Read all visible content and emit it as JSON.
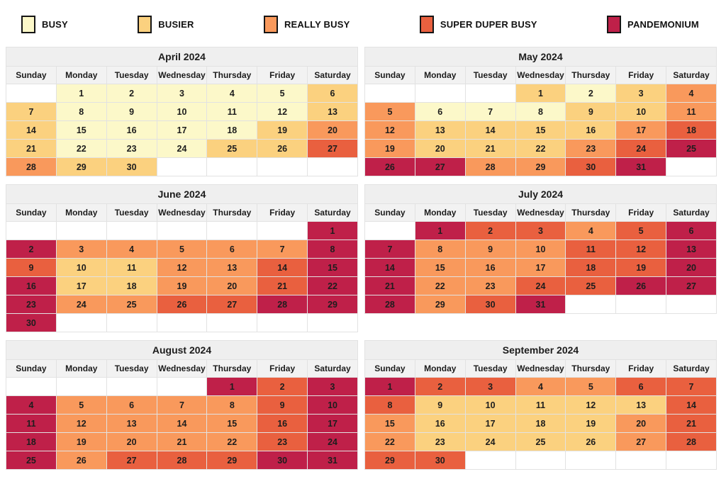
{
  "chart_data": {
    "type": "heatmap",
    "subtype": "calendar-crowd-levels",
    "legend_position": "top",
    "grid": "on",
    "levels": {
      "busy": {
        "label": "BUSY",
        "color": "#FCF8C9"
      },
      "busier": {
        "label": "BUSIER",
        "color": "#FBD17F"
      },
      "really_busy": {
        "label": "REALLY BUSY",
        "color": "#F9995C"
      },
      "super_duper_busy": {
        "label": "SUPER DUPER BUSY",
        "color": "#E9603F"
      },
      "pandemonium": {
        "label": "PANDEMONIUM",
        "color": "#BF2049"
      }
    },
    "legend_order": [
      "busy",
      "busier",
      "really_busy",
      "super_duper_busy",
      "pandemonium"
    ],
    "day_headers": [
      "Sunday",
      "Monday",
      "Tuesday",
      "Wednesday",
      "Thursday",
      "Friday",
      "Saturday"
    ],
    "months": [
      {
        "title": "April 2024",
        "weeks": [
          [
            null,
            [
              1,
              "busy"
            ],
            [
              2,
              "busy"
            ],
            [
              3,
              "busy"
            ],
            [
              4,
              "busy"
            ],
            [
              5,
              "busy"
            ],
            [
              6,
              "busier"
            ]
          ],
          [
            [
              7,
              "busier"
            ],
            [
              8,
              "busy"
            ],
            [
              9,
              "busy"
            ],
            [
              10,
              "busy"
            ],
            [
              11,
              "busy"
            ],
            [
              12,
              "busy"
            ],
            [
              13,
              "busier"
            ]
          ],
          [
            [
              14,
              "busier"
            ],
            [
              15,
              "busy"
            ],
            [
              16,
              "busy"
            ],
            [
              17,
              "busy"
            ],
            [
              18,
              "busy"
            ],
            [
              19,
              "busier"
            ],
            [
              20,
              "really_busy"
            ]
          ],
          [
            [
              21,
              "busier"
            ],
            [
              22,
              "busy"
            ],
            [
              23,
              "busy"
            ],
            [
              24,
              "busy"
            ],
            [
              25,
              "busier"
            ],
            [
              26,
              "busier"
            ],
            [
              27,
              "super_duper_busy"
            ]
          ],
          [
            [
              28,
              "really_busy"
            ],
            [
              29,
              "busier"
            ],
            [
              30,
              "busier"
            ],
            null,
            null,
            null,
            null
          ]
        ]
      },
      {
        "title": "May 2024",
        "weeks": [
          [
            null,
            null,
            null,
            [
              1,
              "busier"
            ],
            [
              2,
              "busy"
            ],
            [
              3,
              "busier"
            ],
            [
              4,
              "really_busy"
            ]
          ],
          [
            [
              5,
              "really_busy"
            ],
            [
              6,
              "busy"
            ],
            [
              7,
              "busy"
            ],
            [
              8,
              "busy"
            ],
            [
              9,
              "busier"
            ],
            [
              10,
              "busier"
            ],
            [
              11,
              "really_busy"
            ]
          ],
          [
            [
              12,
              "really_busy"
            ],
            [
              13,
              "busier"
            ],
            [
              14,
              "busier"
            ],
            [
              15,
              "busier"
            ],
            [
              16,
              "busier"
            ],
            [
              17,
              "really_busy"
            ],
            [
              18,
              "super_duper_busy"
            ]
          ],
          [
            [
              19,
              "really_busy"
            ],
            [
              20,
              "busier"
            ],
            [
              21,
              "busier"
            ],
            [
              22,
              "busier"
            ],
            [
              23,
              "really_busy"
            ],
            [
              24,
              "super_duper_busy"
            ],
            [
              25,
              "pandemonium"
            ]
          ],
          [
            [
              26,
              "pandemonium"
            ],
            [
              27,
              "pandemonium"
            ],
            [
              28,
              "really_busy"
            ],
            [
              29,
              "really_busy"
            ],
            [
              30,
              "super_duper_busy"
            ],
            [
              31,
              "pandemonium"
            ],
            null
          ]
        ]
      },
      {
        "title": "June 2024",
        "weeks": [
          [
            null,
            null,
            null,
            null,
            null,
            null,
            [
              1,
              "pandemonium"
            ]
          ],
          [
            [
              2,
              "pandemonium"
            ],
            [
              3,
              "really_busy"
            ],
            [
              4,
              "really_busy"
            ],
            [
              5,
              "really_busy"
            ],
            [
              6,
              "really_busy"
            ],
            [
              7,
              "really_busy"
            ],
            [
              8,
              "pandemonium"
            ]
          ],
          [
            [
              9,
              "super_duper_busy"
            ],
            [
              10,
              "busier"
            ],
            [
              11,
              "busier"
            ],
            [
              12,
              "really_busy"
            ],
            [
              13,
              "really_busy"
            ],
            [
              14,
              "super_duper_busy"
            ],
            [
              15,
              "pandemonium"
            ]
          ],
          [
            [
              16,
              "pandemonium"
            ],
            [
              17,
              "busier"
            ],
            [
              18,
              "busier"
            ],
            [
              19,
              "really_busy"
            ],
            [
              20,
              "really_busy"
            ],
            [
              21,
              "super_duper_busy"
            ],
            [
              22,
              "pandemonium"
            ]
          ],
          [
            [
              23,
              "pandemonium"
            ],
            [
              24,
              "really_busy"
            ],
            [
              25,
              "really_busy"
            ],
            [
              26,
              "super_duper_busy"
            ],
            [
              27,
              "super_duper_busy"
            ],
            [
              28,
              "pandemonium"
            ],
            [
              29,
              "pandemonium"
            ]
          ],
          [
            [
              30,
              "pandemonium"
            ],
            null,
            null,
            null,
            null,
            null,
            null
          ]
        ]
      },
      {
        "title": "July 2024",
        "weeks": [
          [
            null,
            [
              1,
              "pandemonium"
            ],
            [
              2,
              "super_duper_busy"
            ],
            [
              3,
              "super_duper_busy"
            ],
            [
              4,
              "really_busy"
            ],
            [
              5,
              "super_duper_busy"
            ],
            [
              6,
              "pandemonium"
            ]
          ],
          [
            [
              7,
              "pandemonium"
            ],
            [
              8,
              "really_busy"
            ],
            [
              9,
              "really_busy"
            ],
            [
              10,
              "really_busy"
            ],
            [
              11,
              "super_duper_busy"
            ],
            [
              12,
              "super_duper_busy"
            ],
            [
              13,
              "pandemonium"
            ]
          ],
          [
            [
              14,
              "pandemonium"
            ],
            [
              15,
              "really_busy"
            ],
            [
              16,
              "really_busy"
            ],
            [
              17,
              "really_busy"
            ],
            [
              18,
              "super_duper_busy"
            ],
            [
              19,
              "super_duper_busy"
            ],
            [
              20,
              "pandemonium"
            ]
          ],
          [
            [
              21,
              "pandemonium"
            ],
            [
              22,
              "really_busy"
            ],
            [
              23,
              "really_busy"
            ],
            [
              24,
              "super_duper_busy"
            ],
            [
              25,
              "super_duper_busy"
            ],
            [
              26,
              "pandemonium"
            ],
            [
              27,
              "pandemonium"
            ]
          ],
          [
            [
              28,
              "pandemonium"
            ],
            [
              29,
              "really_busy"
            ],
            [
              30,
              "super_duper_busy"
            ],
            [
              31,
              "pandemonium"
            ],
            null,
            null,
            null
          ]
        ]
      },
      {
        "title": "August 2024",
        "weeks": [
          [
            null,
            null,
            null,
            null,
            [
              1,
              "pandemonium"
            ],
            [
              2,
              "super_duper_busy"
            ],
            [
              3,
              "pandemonium"
            ]
          ],
          [
            [
              4,
              "pandemonium"
            ],
            [
              5,
              "really_busy"
            ],
            [
              6,
              "really_busy"
            ],
            [
              7,
              "really_busy"
            ],
            [
              8,
              "really_busy"
            ],
            [
              9,
              "super_duper_busy"
            ],
            [
              10,
              "pandemonium"
            ]
          ],
          [
            [
              11,
              "pandemonium"
            ],
            [
              12,
              "really_busy"
            ],
            [
              13,
              "really_busy"
            ],
            [
              14,
              "really_busy"
            ],
            [
              15,
              "really_busy"
            ],
            [
              16,
              "super_duper_busy"
            ],
            [
              17,
              "pandemonium"
            ]
          ],
          [
            [
              18,
              "pandemonium"
            ],
            [
              19,
              "really_busy"
            ],
            [
              20,
              "really_busy"
            ],
            [
              21,
              "really_busy"
            ],
            [
              22,
              "really_busy"
            ],
            [
              23,
              "super_duper_busy"
            ],
            [
              24,
              "pandemonium"
            ]
          ],
          [
            [
              25,
              "pandemonium"
            ],
            [
              26,
              "really_busy"
            ],
            [
              27,
              "super_duper_busy"
            ],
            [
              28,
              "super_duper_busy"
            ],
            [
              29,
              "super_duper_busy"
            ],
            [
              30,
              "pandemonium"
            ],
            [
              31,
              "pandemonium"
            ]
          ]
        ]
      },
      {
        "title": "September 2024",
        "weeks": [
          [
            [
              1,
              "pandemonium"
            ],
            [
              2,
              "super_duper_busy"
            ],
            [
              3,
              "super_duper_busy"
            ],
            [
              4,
              "really_busy"
            ],
            [
              5,
              "really_busy"
            ],
            [
              6,
              "super_duper_busy"
            ],
            [
              7,
              "super_duper_busy"
            ]
          ],
          [
            [
              8,
              "super_duper_busy"
            ],
            [
              9,
              "busier"
            ],
            [
              10,
              "busier"
            ],
            [
              11,
              "busier"
            ],
            [
              12,
              "busier"
            ],
            [
              13,
              "busier"
            ],
            [
              14,
              "super_duper_busy"
            ]
          ],
          [
            [
              15,
              "really_busy"
            ],
            [
              16,
              "busier"
            ],
            [
              17,
              "busier"
            ],
            [
              18,
              "busier"
            ],
            [
              19,
              "busier"
            ],
            [
              20,
              "really_busy"
            ],
            [
              21,
              "super_duper_busy"
            ]
          ],
          [
            [
              22,
              "really_busy"
            ],
            [
              23,
              "busier"
            ],
            [
              24,
              "busier"
            ],
            [
              25,
              "busier"
            ],
            [
              26,
              "busier"
            ],
            [
              27,
              "really_busy"
            ],
            [
              28,
              "super_duper_busy"
            ]
          ],
          [
            [
              29,
              "super_duper_busy"
            ],
            [
              30,
              "super_duper_busy"
            ],
            null,
            null,
            null,
            null,
            null
          ]
        ]
      }
    ]
  }
}
